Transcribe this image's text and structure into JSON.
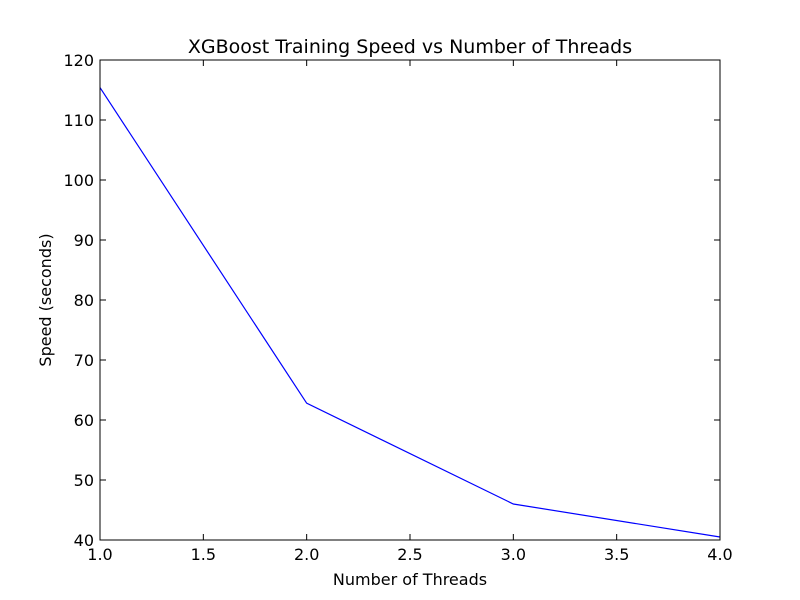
{
  "chart_data": {
    "type": "line",
    "title": "XGBoost Training Speed vs Number of Threads",
    "xlabel": "Number of Threads",
    "ylabel": "Speed (seconds)",
    "xlim": [
      1.0,
      4.0
    ],
    "ylim": [
      40,
      120
    ],
    "x_ticks": [
      "1.0",
      "1.5",
      "2.0",
      "2.5",
      "3.0",
      "3.5",
      "4.0"
    ],
    "y_ticks": [
      "40",
      "50",
      "60",
      "70",
      "80",
      "90",
      "100",
      "110",
      "120"
    ],
    "grid": false,
    "series": [
      {
        "color": "#0000ff",
        "x": [
          1,
          2,
          3,
          4
        ],
        "y": [
          115.4,
          62.8,
          46.0,
          40.5
        ]
      }
    ]
  }
}
